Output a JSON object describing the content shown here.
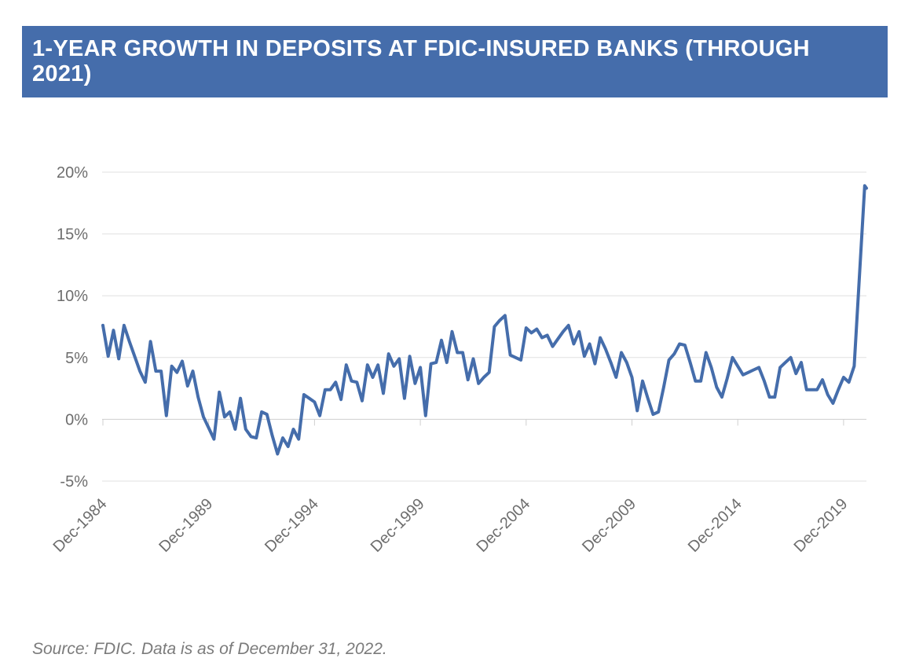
{
  "title": "1-YEAR GROWTH IN DEPOSITS AT FDIC-INSURED BANKS (THROUGH 2021)",
  "source": "Source: FDIC. Data is as of December 31, 2022.",
  "colors": {
    "header": "#456dab",
    "line": "#456dab",
    "grid": "#e0e0e0"
  },
  "chart_data": {
    "type": "line",
    "title": "1-YEAR GROWTH IN DEPOSITS AT FDIC-INSURED BANKS (THROUGH 2021)",
    "xlabel": "",
    "ylabel": "",
    "x_tick_labels": [
      "Dec-1984",
      "Dec-1989",
      "Dec-1994",
      "Dec-1999",
      "Dec-2004",
      "Dec-2009",
      "Dec-2014",
      "Dec-2019"
    ],
    "y_tick_labels": [
      "20%",
      "15%",
      "10%",
      "5%",
      "0%",
      "-5%"
    ],
    "y_ticks": [
      20,
      15,
      10,
      5,
      0,
      -5
    ],
    "ylim": [
      -5,
      20
    ],
    "xlim": [
      1984.92,
      2021.0
    ],
    "grid": "horizontal",
    "x_unit": "year (quarterly)",
    "y_unit": "percent",
    "series": [
      {
        "values": [
          [
            1984.92,
            7.6
          ],
          [
            1985.17,
            5.1
          ],
          [
            1985.42,
            7.2
          ],
          [
            1985.67,
            4.9
          ],
          [
            1985.92,
            7.6
          ],
          [
            1986.17,
            6.3
          ],
          [
            1986.42,
            5.1
          ],
          [
            1986.67,
            3.9
          ],
          [
            1986.92,
            3.0
          ],
          [
            1987.17,
            6.3
          ],
          [
            1987.42,
            3.9
          ],
          [
            1987.67,
            3.9
          ],
          [
            1987.92,
            0.3
          ],
          [
            1988.17,
            4.3
          ],
          [
            1988.42,
            3.8
          ],
          [
            1988.67,
            4.7
          ],
          [
            1988.92,
            2.7
          ],
          [
            1989.17,
            3.9
          ],
          [
            1989.42,
            1.8
          ],
          [
            1989.67,
            0.2
          ],
          [
            1989.92,
            -0.7
          ],
          [
            1990.17,
            -1.6
          ],
          [
            1990.42,
            2.2
          ],
          [
            1990.67,
            0.2
          ],
          [
            1990.92,
            0.6
          ],
          [
            1991.17,
            -0.8
          ],
          [
            1991.42,
            1.7
          ],
          [
            1991.67,
            -0.8
          ],
          [
            1991.92,
            -1.4
          ],
          [
            1992.17,
            -1.5
          ],
          [
            1992.42,
            0.6
          ],
          [
            1992.67,
            0.4
          ],
          [
            1992.92,
            -1.3
          ],
          [
            1993.17,
            -2.8
          ],
          [
            1993.42,
            -1.5
          ],
          [
            1993.67,
            -2.2
          ],
          [
            1993.92,
            -0.8
          ],
          [
            1994.17,
            -1.6
          ],
          [
            1994.42,
            2.0
          ],
          [
            1994.67,
            1.7
          ],
          [
            1994.92,
            1.4
          ],
          [
            1995.17,
            0.3
          ],
          [
            1995.42,
            2.4
          ],
          [
            1995.67,
            2.4
          ],
          [
            1995.92,
            3.0
          ],
          [
            1996.17,
            1.6
          ],
          [
            1996.42,
            4.4
          ],
          [
            1996.67,
            3.1
          ],
          [
            1996.92,
            3.0
          ],
          [
            1997.17,
            1.5
          ],
          [
            1997.42,
            4.4
          ],
          [
            1997.67,
            3.4
          ],
          [
            1997.92,
            4.4
          ],
          [
            1998.17,
            2.1
          ],
          [
            1998.42,
            5.3
          ],
          [
            1998.67,
            4.3
          ],
          [
            1998.92,
            4.9
          ],
          [
            1999.17,
            1.7
          ],
          [
            1999.42,
            5.1
          ],
          [
            1999.67,
            2.9
          ],
          [
            1999.92,
            4.2
          ],
          [
            2000.17,
            0.3
          ],
          [
            2000.42,
            4.5
          ],
          [
            2000.67,
            4.6
          ],
          [
            2000.92,
            6.4
          ],
          [
            2001.17,
            4.6
          ],
          [
            2001.42,
            7.1
          ],
          [
            2001.67,
            5.4
          ],
          [
            2001.92,
            5.4
          ],
          [
            2002.17,
            3.2
          ],
          [
            2002.42,
            4.9
          ],
          [
            2002.67,
            2.9
          ],
          [
            2002.92,
            3.4
          ],
          [
            2003.17,
            3.8
          ],
          [
            2003.42,
            7.5
          ],
          [
            2003.67,
            8.0
          ],
          [
            2003.92,
            8.4
          ],
          [
            2004.17,
            5.2
          ],
          [
            2004.42,
            5.0
          ],
          [
            2004.67,
            4.8
          ],
          [
            2004.92,
            7.4
          ],
          [
            2005.17,
            7.0
          ],
          [
            2005.42,
            7.3
          ],
          [
            2005.67,
            6.6
          ],
          [
            2005.92,
            6.8
          ],
          [
            2006.17,
            5.9
          ],
          [
            2006.42,
            6.5
          ],
          [
            2006.67,
            7.1
          ],
          [
            2006.92,
            7.6
          ],
          [
            2007.17,
            6.1
          ],
          [
            2007.42,
            7.1
          ],
          [
            2007.67,
            5.1
          ],
          [
            2007.92,
            6.1
          ],
          [
            2008.17,
            4.5
          ],
          [
            2008.42,
            6.6
          ],
          [
            2008.67,
            5.7
          ],
          [
            2008.92,
            4.6
          ],
          [
            2009.17,
            3.4
          ],
          [
            2009.42,
            5.4
          ],
          [
            2009.67,
            4.6
          ],
          [
            2009.92,
            3.4
          ],
          [
            2010.17,
            0.7
          ],
          [
            2010.42,
            3.1
          ],
          [
            2010.67,
            1.7
          ],
          [
            2010.92,
            0.4
          ],
          [
            2011.17,
            0.6
          ],
          [
            2011.42,
            2.6
          ],
          [
            2011.67,
            4.8
          ],
          [
            2011.92,
            5.3
          ],
          [
            2012.17,
            6.1
          ],
          [
            2012.42,
            6.0
          ],
          [
            2012.67,
            4.6
          ],
          [
            2012.92,
            3.1
          ],
          [
            2013.17,
            3.1
          ],
          [
            2013.42,
            5.4
          ],
          [
            2013.67,
            4.2
          ],
          [
            2013.92,
            2.6
          ],
          [
            2014.17,
            1.8
          ],
          [
            2014.42,
            3.3
          ],
          [
            2014.67,
            5.0
          ],
          [
            2014.92,
            4.3
          ],
          [
            2015.17,
            3.6
          ],
          [
            2015.42,
            3.8
          ],
          [
            2015.67,
            4.0
          ],
          [
            2015.92,
            4.2
          ],
          [
            2016.17,
            3.1
          ],
          [
            2016.42,
            1.8
          ],
          [
            2016.67,
            1.8
          ],
          [
            2016.92,
            4.2
          ],
          [
            2017.17,
            4.6
          ],
          [
            2017.42,
            5.0
          ],
          [
            2017.67,
            3.7
          ],
          [
            2017.92,
            4.6
          ],
          [
            2018.17,
            2.4
          ],
          [
            2018.42,
            2.4
          ],
          [
            2018.67,
            2.4
          ],
          [
            2018.92,
            3.2
          ],
          [
            2019.17,
            2.0
          ],
          [
            2019.42,
            1.3
          ],
          [
            2019.67,
            2.4
          ],
          [
            2019.92,
            3.4
          ],
          [
            2020.17,
            3.0
          ],
          [
            2020.42,
            4.3
          ],
          [
            2020.92,
            18.9
          ],
          [
            2021.0,
            18.7
          ]
        ]
      }
    ]
  }
}
